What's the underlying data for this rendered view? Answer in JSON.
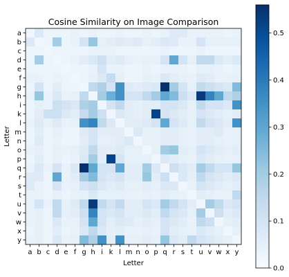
{
  "chart_data": {
    "type": "heatmap",
    "title": "Cosine Similarity on Image Comparison",
    "xlabel": "Letter",
    "ylabel": "Letter",
    "x_labels": [
      "a",
      "b",
      "c",
      "d",
      "e",
      "f",
      "g",
      "h",
      "i",
      "k",
      "l",
      "m",
      "n",
      "o",
      "p",
      "q",
      "r",
      "s",
      "t",
      "u",
      "v",
      "w",
      "x",
      "y"
    ],
    "y_labels": [
      "a",
      "b",
      "c",
      "d",
      "e",
      "f",
      "g",
      "h",
      "i",
      "k",
      "l",
      "m",
      "n",
      "o",
      "p",
      "q",
      "r",
      "s",
      "t",
      "u",
      "v",
      "w",
      "x",
      "y"
    ],
    "colorbar": {
      "min": 0.0,
      "max": 0.56,
      "ticks": [
        "0.0",
        "0.1",
        "0.2",
        "0.3",
        "0.4",
        "0.5"
      ],
      "tick_values": [
        0,
        0.1,
        0.2,
        0.3,
        0.4,
        0.5
      ],
      "colormap": "Blues"
    },
    "values": [
      [
        0.02,
        0.08,
        0.03,
        0.03,
        0.03,
        0.04,
        0.03,
        0.04,
        0.03,
        0.03,
        0.04,
        0.03,
        0.03,
        0.04,
        0.03,
        0.04,
        0.07,
        0.07,
        0.04,
        0.04,
        0.04,
        0.04,
        0.03,
        0.04
      ],
      [
        0.08,
        0.02,
        0.03,
        0.2,
        0.03,
        0.04,
        0.1,
        0.22,
        0.05,
        0.06,
        0.07,
        0.06,
        0.07,
        0.05,
        0.06,
        0.08,
        0.07,
        0.04,
        0.04,
        0.1,
        0.05,
        0.05,
        0.05,
        0.05
      ],
      [
        0.03,
        0.03,
        0.02,
        0.03,
        0.03,
        0.03,
        0.03,
        0.04,
        0.04,
        0.04,
        0.03,
        0.03,
        0.03,
        0.03,
        0.03,
        0.04,
        0.03,
        0.03,
        0.03,
        0.04,
        0.03,
        0.03,
        0.03,
        0.03
      ],
      [
        0.03,
        0.2,
        0.03,
        0.02,
        0.03,
        0.04,
        0.06,
        0.08,
        0.12,
        0.06,
        0.07,
        0.05,
        0.04,
        0.05,
        0.05,
        0.1,
        0.3,
        0.1,
        0.05,
        0.15,
        0.15,
        0.08,
        0.06,
        0.08
      ],
      [
        0.03,
        0.03,
        0.03,
        0.03,
        0.02,
        0.03,
        0.03,
        0.04,
        0.1,
        0.04,
        0.04,
        0.03,
        0.03,
        0.04,
        0.03,
        0.04,
        0.04,
        0.04,
        0.03,
        0.05,
        0.05,
        0.04,
        0.03,
        0.04
      ],
      [
        0.04,
        0.04,
        0.03,
        0.04,
        0.03,
        0.02,
        0.03,
        0.05,
        0.08,
        0.14,
        0.05,
        0.03,
        0.03,
        0.05,
        0.04,
        0.08,
        0.06,
        0.05,
        0.04,
        0.07,
        0.06,
        0.04,
        0.04,
        0.05
      ],
      [
        0.03,
        0.1,
        0.03,
        0.06,
        0.03,
        0.03,
        0.02,
        0.15,
        0.18,
        0.1,
        0.35,
        0.07,
        0.06,
        0.07,
        0.08,
        0.56,
        0.2,
        0.1,
        0.05,
        0.15,
        0.12,
        0.1,
        0.08,
        0.25
      ],
      [
        0.04,
        0.22,
        0.04,
        0.08,
        0.04,
        0.05,
        0.15,
        0.02,
        0.2,
        0.28,
        0.35,
        0.1,
        0.1,
        0.15,
        0.2,
        0.3,
        0.25,
        0.12,
        0.08,
        0.54,
        0.38,
        0.3,
        0.15,
        0.18
      ],
      [
        0.03,
        0.05,
        0.04,
        0.12,
        0.1,
        0.08,
        0.18,
        0.2,
        0.02,
        0.1,
        0.15,
        0.06,
        0.05,
        0.06,
        0.06,
        0.1,
        0.1,
        0.08,
        0.05,
        0.15,
        0.1,
        0.1,
        0.08,
        0.35
      ],
      [
        0.03,
        0.06,
        0.12,
        0.12,
        0.08,
        0.06,
        0.14,
        0.2,
        0.12,
        0.02,
        0.08,
        0.06,
        0.05,
        0.06,
        0.52,
        0.1,
        0.08,
        0.06,
        0.05,
        0.1,
        0.08,
        0.06,
        0.05,
        0.06
      ],
      [
        0.04,
        0.07,
        0.05,
        0.07,
        0.04,
        0.05,
        0.35,
        0.38,
        0.15,
        0.08,
        0.02,
        0.06,
        0.06,
        0.07,
        0.1,
        0.3,
        0.1,
        0.07,
        0.05,
        0.15,
        0.1,
        0.08,
        0.06,
        0.35
      ],
      [
        0.03,
        0.06,
        0.03,
        0.05,
        0.03,
        0.03,
        0.07,
        0.1,
        0.06,
        0.06,
        0.06,
        0.02,
        0.08,
        0.05,
        0.05,
        0.06,
        0.06,
        0.05,
        0.04,
        0.06,
        0.06,
        0.07,
        0.04,
        0.05
      ],
      [
        0.03,
        0.07,
        0.03,
        0.04,
        0.03,
        0.03,
        0.06,
        0.1,
        0.05,
        0.05,
        0.06,
        0.08,
        0.02,
        0.05,
        0.05,
        0.06,
        0.06,
        0.05,
        0.04,
        0.06,
        0.06,
        0.05,
        0.04,
        0.05
      ],
      [
        0.04,
        0.05,
        0.03,
        0.05,
        0.04,
        0.05,
        0.07,
        0.15,
        0.06,
        0.06,
        0.07,
        0.05,
        0.05,
        0.02,
        0.05,
        0.2,
        0.22,
        0.06,
        0.05,
        0.1,
        0.08,
        0.06,
        0.05,
        0.06
      ],
      [
        0.03,
        0.06,
        0.03,
        0.05,
        0.03,
        0.04,
        0.08,
        0.2,
        0.06,
        0.52,
        0.1,
        0.05,
        0.05,
        0.05,
        0.02,
        0.08,
        0.06,
        0.05,
        0.04,
        0.08,
        0.06,
        0.05,
        0.04,
        0.05
      ],
      [
        0.04,
        0.08,
        0.04,
        0.1,
        0.04,
        0.08,
        0.56,
        0.3,
        0.1,
        0.1,
        0.3,
        0.06,
        0.06,
        0.2,
        0.08,
        0.02,
        0.12,
        0.08,
        0.06,
        0.2,
        0.15,
        0.1,
        0.1,
        0.22
      ],
      [
        0.07,
        0.07,
        0.03,
        0.3,
        0.04,
        0.06,
        0.2,
        0.25,
        0.1,
        0.08,
        0.1,
        0.06,
        0.06,
        0.22,
        0.06,
        0.12,
        0.02,
        0.08,
        0.05,
        0.15,
        0.1,
        0.08,
        0.06,
        0.08
      ],
      [
        0.07,
        0.04,
        0.03,
        0.1,
        0.04,
        0.05,
        0.1,
        0.12,
        0.08,
        0.06,
        0.07,
        0.05,
        0.05,
        0.06,
        0.05,
        0.08,
        0.08,
        0.02,
        0.04,
        0.1,
        0.08,
        0.06,
        0.05,
        0.06
      ],
      [
        0.04,
        0.04,
        0.03,
        0.05,
        0.03,
        0.04,
        0.05,
        0.08,
        0.05,
        0.05,
        0.05,
        0.04,
        0.04,
        0.05,
        0.04,
        0.06,
        0.05,
        0.04,
        0.02,
        0.06,
        0.05,
        0.04,
        0.04,
        0.15
      ],
      [
        0.04,
        0.1,
        0.04,
        0.15,
        0.05,
        0.07,
        0.15,
        0.54,
        0.15,
        0.1,
        0.15,
        0.06,
        0.06,
        0.1,
        0.08,
        0.2,
        0.15,
        0.1,
        0.06,
        0.02,
        0.2,
        0.15,
        0.08,
        0.1
      ],
      [
        0.04,
        0.05,
        0.03,
        0.15,
        0.05,
        0.06,
        0.12,
        0.38,
        0.1,
        0.08,
        0.1,
        0.06,
        0.06,
        0.08,
        0.06,
        0.15,
        0.1,
        0.08,
        0.05,
        0.2,
        0.02,
        0.12,
        0.06,
        0.08
      ],
      [
        0.04,
        0.05,
        0.03,
        0.08,
        0.04,
        0.04,
        0.1,
        0.3,
        0.1,
        0.06,
        0.08,
        0.07,
        0.05,
        0.06,
        0.05,
        0.1,
        0.08,
        0.06,
        0.04,
        0.15,
        0.12,
        0.02,
        0.05,
        0.06
      ],
      [
        0.03,
        0.05,
        0.03,
        0.06,
        0.03,
        0.04,
        0.08,
        0.15,
        0.08,
        0.05,
        0.06,
        0.04,
        0.04,
        0.05,
        0.04,
        0.1,
        0.06,
        0.05,
        0.04,
        0.08,
        0.06,
        0.05,
        0.02,
        0.05
      ],
      [
        0.04,
        0.05,
        0.03,
        0.08,
        0.04,
        0.05,
        0.25,
        0.18,
        0.35,
        0.06,
        0.35,
        0.05,
        0.05,
        0.06,
        0.05,
        0.22,
        0.08,
        0.06,
        0.15,
        0.1,
        0.08,
        0.06,
        0.05,
        0.02
      ]
    ]
  }
}
